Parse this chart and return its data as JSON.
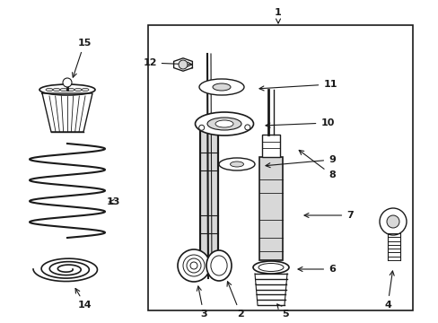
{
  "bg_color": "#ffffff",
  "line_color": "#1a1a1a",
  "gray_fill": "#d8d8d8",
  "fig_width": 4.89,
  "fig_height": 3.6,
  "dpi": 100
}
